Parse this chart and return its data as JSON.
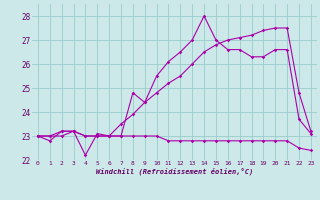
{
  "xlabel": "Windchill (Refroidissement éolien,°C)",
  "bg_color": "#cce8e8",
  "line_color": "#aa00aa",
  "grid_color": "#99cccc",
  "x": [
    0,
    1,
    2,
    3,
    4,
    5,
    6,
    7,
    8,
    9,
    10,
    11,
    12,
    13,
    14,
    15,
    16,
    17,
    18,
    19,
    20,
    21,
    22,
    23
  ],
  "line1": [
    23.0,
    22.8,
    23.2,
    23.2,
    22.2,
    23.1,
    23.0,
    23.0,
    23.0,
    23.0,
    23.0,
    22.8,
    22.8,
    22.8,
    22.8,
    22.8,
    22.8,
    22.8,
    22.8,
    22.8,
    22.8,
    22.8,
    22.5,
    22.4
  ],
  "line2": [
    23.0,
    23.0,
    23.0,
    23.2,
    23.0,
    23.0,
    23.0,
    23.5,
    23.9,
    24.4,
    24.8,
    25.2,
    25.5,
    26.0,
    26.5,
    26.8,
    27.0,
    27.1,
    27.2,
    27.4,
    27.5,
    27.5,
    24.8,
    23.2
  ],
  "line3": [
    23.0,
    23.0,
    23.2,
    23.2,
    23.0,
    23.0,
    23.0,
    23.0,
    24.8,
    24.4,
    25.5,
    26.1,
    26.5,
    27.0,
    28.0,
    27.0,
    26.6,
    26.6,
    26.3,
    26.3,
    26.6,
    26.6,
    23.7,
    23.1
  ],
  "ylim": [
    22.0,
    28.5
  ],
  "yticks": [
    22,
    23,
    24,
    25,
    26,
    27,
    28
  ]
}
